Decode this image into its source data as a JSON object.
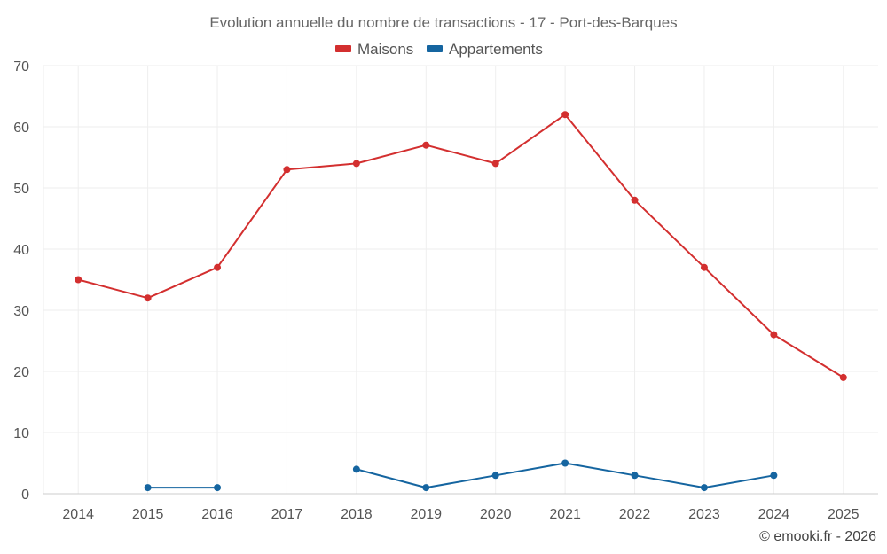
{
  "chart_data": {
    "type": "line",
    "title": "Evolution annuelle du nombre de transactions - 17 - Port-des-Barques",
    "categories": [
      "2014",
      "2015",
      "2016",
      "2017",
      "2018",
      "2019",
      "2020",
      "2021",
      "2022",
      "2023",
      "2024",
      "2025"
    ],
    "series": [
      {
        "name": "Maisons",
        "color": "#d32f2f",
        "values": [
          35,
          32,
          37,
          53,
          54,
          57,
          54,
          62,
          48,
          37,
          26,
          19
        ]
      },
      {
        "name": "Appartements",
        "color": "#1565a0",
        "values": [
          null,
          1,
          1,
          null,
          4,
          1,
          3,
          5,
          3,
          1,
          3,
          null
        ]
      }
    ],
    "yticks": [
      0,
      10,
      20,
      30,
      40,
      50,
      60,
      70
    ],
    "ylim": [
      0,
      70
    ],
    "xlabel": "",
    "ylabel": "",
    "grid": true,
    "legend_position": "top-center"
  },
  "credit": "© emooki.fr - 2026"
}
